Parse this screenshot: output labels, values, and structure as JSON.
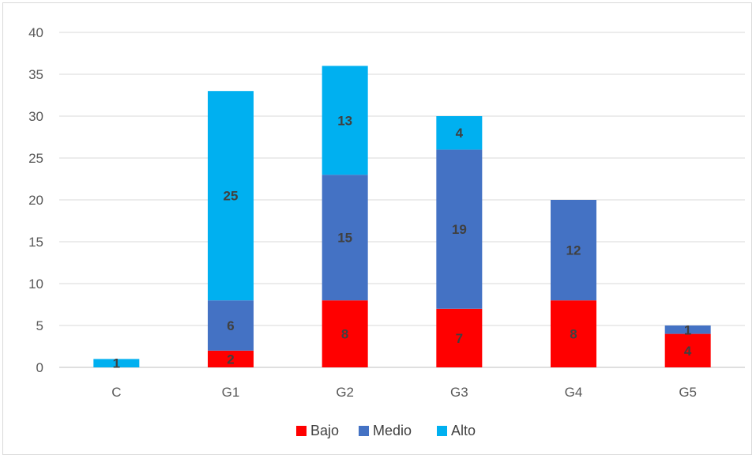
{
  "chart_data": {
    "type": "bar",
    "stacked": true,
    "categories": [
      "C",
      "G1",
      "G2",
      "G3",
      "G4",
      "G5"
    ],
    "series": [
      {
        "name": "Bajo",
        "color": "#ff0000",
        "values": [
          0,
          2,
          8,
          7,
          8,
          4
        ]
      },
      {
        "name": "Medio",
        "color": "#4472c4",
        "values": [
          0,
          6,
          15,
          19,
          12,
          1
        ]
      },
      {
        "name": "Alto",
        "color": "#00b0f0",
        "values": [
          1,
          25,
          13,
          4,
          0,
          0
        ]
      }
    ],
    "ylim": [
      0,
      40
    ],
    "yticks": [
      0,
      5,
      10,
      15,
      20,
      25,
      30,
      35,
      40
    ],
    "grid": true,
    "legend": "bottom",
    "title": "",
    "xlabel": "",
    "ylabel": ""
  }
}
